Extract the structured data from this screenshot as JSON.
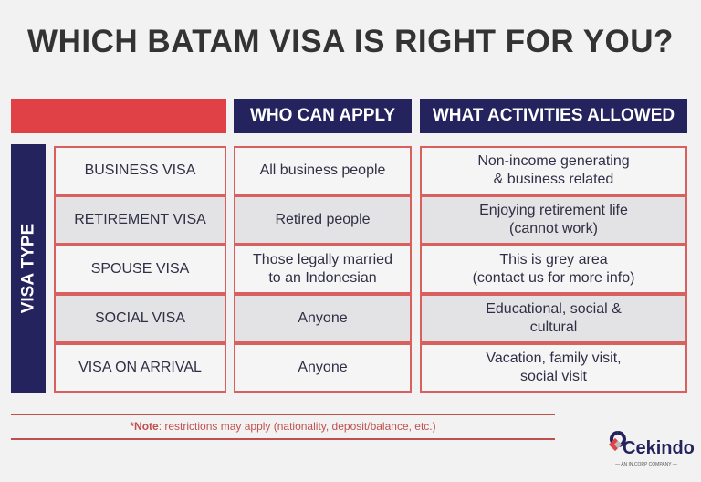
{
  "title": "WHICH BATAM VISA IS RIGHT FOR YOU?",
  "headers": {
    "who": "WHO CAN APPLY",
    "activities": "WHAT ACTIVITIES ALLOWED"
  },
  "side_label": "VISA TYPE",
  "rows": [
    {
      "type": "BUSINESS VISA",
      "who": "All business people",
      "activities": "Non-income generating\n& business related"
    },
    {
      "type": "RETIREMENT VISA",
      "who": "Retired people",
      "activities": "Enjoying retirement life\n(cannot work)"
    },
    {
      "type": "SPOUSE VISA",
      "who": "Those legally married\nto an Indonesian",
      "activities": "This is grey area\n(contact us for more info)"
    },
    {
      "type": "SOCIAL VISA",
      "who": "Anyone",
      "activities": "Educational, social &\ncultural"
    },
    {
      "type": "VISA ON ARRIVAL",
      "who": "Anyone",
      "activities": "Vacation, family visit,\nsocial visit"
    }
  ],
  "note": {
    "label": "*Note",
    "text": ": restrictions may apply (nationality, deposit/balance, etc.)"
  },
  "logo": {
    "name": "Cekindo",
    "tagline": "— AN IN.CORP COMPANY —"
  },
  "colors": {
    "navy": "#25235e",
    "red": "#e04146",
    "border": "#d8615f"
  }
}
